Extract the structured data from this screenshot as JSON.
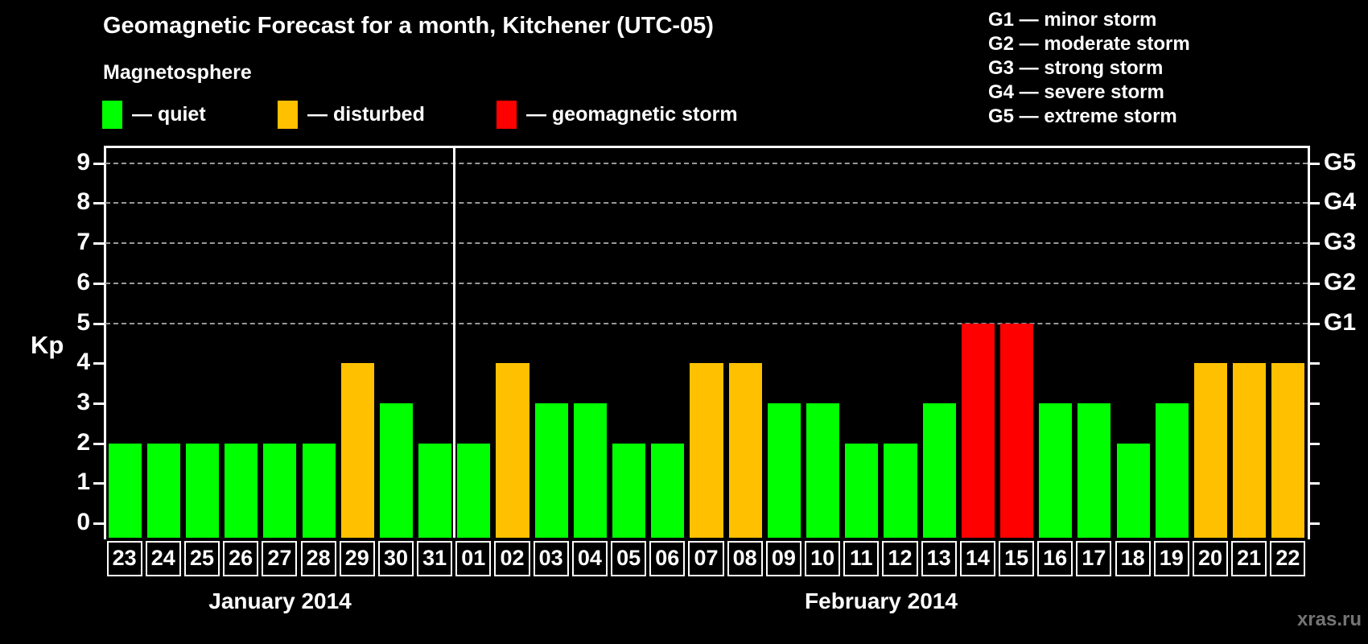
{
  "title": "Geomagnetic Forecast for a month, Kitchener (UTC-05)",
  "legend": {
    "heading": "Magnetosphere",
    "items": [
      {
        "state": "quiet",
        "label": "— quiet",
        "color": "#00ff00"
      },
      {
        "state": "disturbed",
        "label": "— disturbed",
        "color": "#ffc000"
      },
      {
        "state": "storm",
        "label": "— geomagnetic storm",
        "color": "#ff0000"
      }
    ]
  },
  "g_scale_legend": [
    "G1 — minor storm",
    "G2 — moderate storm",
    "G3 — strong storm",
    "G4 — severe storm",
    "G5 — extreme storm"
  ],
  "watermark": "xras.ru",
  "chart_data": {
    "type": "bar",
    "ylabel": "Kp",
    "ylim": [
      0,
      9
    ],
    "y_ticks": [
      0,
      1,
      2,
      3,
      4,
      5,
      6,
      7,
      8,
      9
    ],
    "grid": "horizontal dashed lines at Kp 5-9",
    "legend_position": "top",
    "colors": {
      "quiet": "#00ff00",
      "disturbed": "#ffc000",
      "storm": "#ff0000"
    },
    "g_axis": [
      {
        "label": "G1",
        "kp": 5
      },
      {
        "label": "G2",
        "kp": 6
      },
      {
        "label": "G3",
        "kp": 7
      },
      {
        "label": "G4",
        "kp": 8
      },
      {
        "label": "G5",
        "kp": 9
      }
    ],
    "months": [
      {
        "label": "January 2014",
        "days": [
          {
            "day": "23",
            "kp": 2,
            "state": "quiet"
          },
          {
            "day": "24",
            "kp": 2,
            "state": "quiet"
          },
          {
            "day": "25",
            "kp": 2,
            "state": "quiet"
          },
          {
            "day": "26",
            "kp": 2,
            "state": "quiet"
          },
          {
            "day": "27",
            "kp": 2,
            "state": "quiet"
          },
          {
            "day": "28",
            "kp": 2,
            "state": "quiet"
          },
          {
            "day": "29",
            "kp": 4,
            "state": "disturbed"
          },
          {
            "day": "30",
            "kp": 3,
            "state": "quiet"
          },
          {
            "day": "31",
            "kp": 2,
            "state": "quiet"
          }
        ]
      },
      {
        "label": "February 2014",
        "days": [
          {
            "day": "01",
            "kp": 2,
            "state": "quiet"
          },
          {
            "day": "02",
            "kp": 4,
            "state": "disturbed"
          },
          {
            "day": "03",
            "kp": 3,
            "state": "quiet"
          },
          {
            "day": "04",
            "kp": 3,
            "state": "quiet"
          },
          {
            "day": "05",
            "kp": 2,
            "state": "quiet"
          },
          {
            "day": "06",
            "kp": 2,
            "state": "quiet"
          },
          {
            "day": "07",
            "kp": 4,
            "state": "disturbed"
          },
          {
            "day": "08",
            "kp": 4,
            "state": "disturbed"
          },
          {
            "day": "09",
            "kp": 3,
            "state": "quiet"
          },
          {
            "day": "10",
            "kp": 3,
            "state": "quiet"
          },
          {
            "day": "11",
            "kp": 2,
            "state": "quiet"
          },
          {
            "day": "12",
            "kp": 2,
            "state": "quiet"
          },
          {
            "day": "13",
            "kp": 3,
            "state": "quiet"
          },
          {
            "day": "14",
            "kp": 5,
            "state": "storm"
          },
          {
            "day": "15",
            "kp": 5,
            "state": "storm"
          },
          {
            "day": "16",
            "kp": 3,
            "state": "quiet"
          },
          {
            "day": "17",
            "kp": 3,
            "state": "quiet"
          },
          {
            "day": "18",
            "kp": 2,
            "state": "quiet"
          },
          {
            "day": "19",
            "kp": 3,
            "state": "quiet"
          },
          {
            "day": "20",
            "kp": 4,
            "state": "disturbed"
          },
          {
            "day": "21",
            "kp": 4,
            "state": "disturbed"
          },
          {
            "day": "22",
            "kp": 4,
            "state": "disturbed"
          }
        ]
      }
    ]
  }
}
